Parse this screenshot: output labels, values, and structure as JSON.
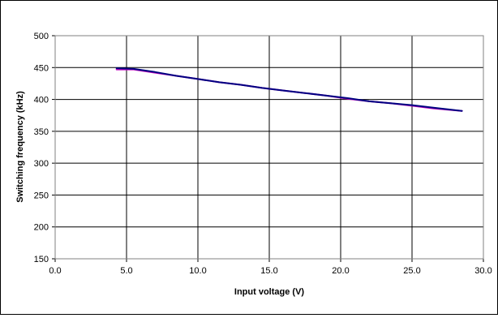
{
  "chart_data": {
    "type": "line",
    "title": "",
    "xlabel": "Input voltage (V)",
    "ylabel": "Switching frequency (kHz)",
    "xlim": [
      0.0,
      30.0
    ],
    "ylim": [
      150,
      500
    ],
    "x_ticks": [
      "0.0",
      "5.0",
      "10.0",
      "15.0",
      "20.0",
      "25.0",
      "30.0"
    ],
    "y_ticks": [
      "150",
      "200",
      "250",
      "300",
      "350",
      "400",
      "450",
      "500"
    ],
    "grid": true,
    "legend": "none",
    "series": [
      {
        "color": "#c000c0",
        "x": [
          4.3,
          5.5,
          7.0,
          8.5,
          10.0,
          11.5,
          13.0,
          14.5,
          16.0,
          17.5,
          19.0,
          20.5,
          22.0,
          23.5,
          25.0,
          26.5,
          28.5
        ],
        "values": [
          447,
          447,
          442,
          437,
          432,
          427,
          423,
          418,
          414,
          410,
          406,
          401,
          397,
          394,
          390,
          386,
          382
        ]
      },
      {
        "color": "#000080",
        "x": [
          4.3,
          5.5,
          7.0,
          8.5,
          10.0,
          11.5,
          13.0,
          14.5,
          16.0,
          17.5,
          19.0,
          20.5,
          22.0,
          23.5,
          25.0,
          26.5,
          28.5
        ],
        "values": [
          449,
          448,
          443,
          437,
          432,
          427,
          423,
          418,
          414,
          410,
          406,
          402,
          397,
          394,
          391,
          387,
          382
        ]
      }
    ]
  }
}
